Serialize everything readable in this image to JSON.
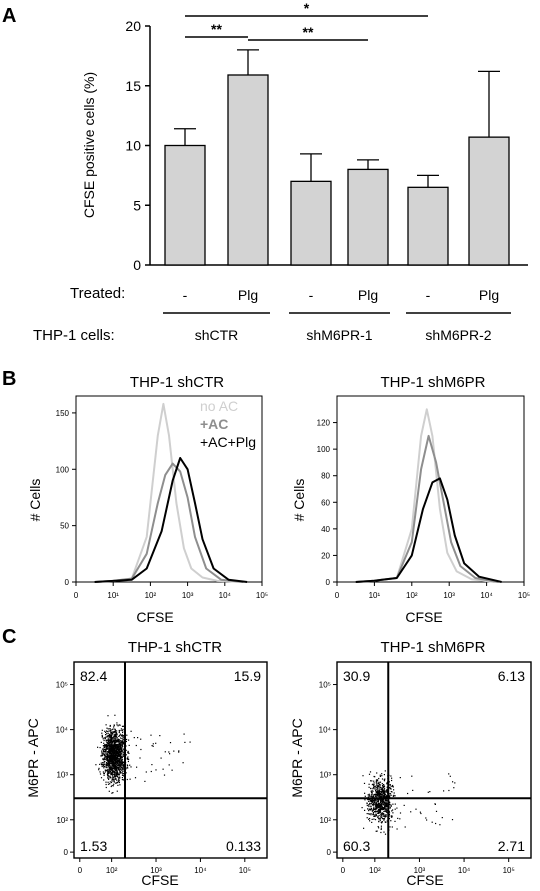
{
  "panel_labels": [
    "A",
    "B",
    "C"
  ],
  "colors": {
    "bar_fill": "#d3d3d3",
    "no_ac": "#cfcfcf",
    "ac": "#8e8e8e",
    "ac_plg": "#000000",
    "dots": "#000000"
  },
  "chart_data": [
    {
      "type": "bar",
      "panel": "A",
      "ylabel": "CFSE positive cells (%)",
      "ylim": [
        0,
        20
      ],
      "yticks": [
        0,
        5,
        10,
        15,
        20
      ],
      "categories": [
        "-",
        "Plg",
        "-",
        "Plg",
        "-",
        "Plg"
      ],
      "values": [
        10.0,
        15.9,
        7.0,
        8.0,
        6.5,
        10.7
      ],
      "errors": [
        1.4,
        2.1,
        2.3,
        0.8,
        1.0,
        5.5
      ],
      "treated_label": "Treated:",
      "cells_label": "THP-1 cells:",
      "groups": [
        "shCTR",
        "shM6PR-1",
        "shM6PR-2"
      ],
      "significance": [
        {
          "from": 0,
          "to": 1,
          "label": "**"
        },
        {
          "from": 1,
          "to": 3,
          "label": "**"
        },
        {
          "from": 0,
          "to": 4,
          "label": "*"
        }
      ]
    },
    {
      "type": "line",
      "panel": "B",
      "title": "THP-1 shCTR",
      "xlabel": "CFSE",
      "ylabel": "# Cells",
      "xscale": "log",
      "xticks": [
        "0",
        "10¹",
        "10²",
        "10³",
        "10⁴",
        "10⁵"
      ],
      "ylim": [
        0,
        165
      ],
      "yticks": [
        0,
        50,
        100,
        150
      ],
      "legend_position": "top-right",
      "series": [
        {
          "name": "no AC",
          "x": [
            0.5,
            1.0,
            1.5,
            1.9,
            2.2,
            2.35,
            2.5,
            2.7,
            2.9,
            3.1,
            3.4,
            3.8,
            4.5
          ],
          "y": [
            0,
            1,
            3,
            40,
            130,
            158,
            130,
            70,
            30,
            12,
            4,
            1,
            0
          ]
        },
        {
          "name": "+AC",
          "x": [
            0.5,
            1.0,
            1.5,
            1.9,
            2.2,
            2.4,
            2.6,
            2.8,
            3.0,
            3.2,
            3.5,
            3.9,
            4.5
          ],
          "y": [
            0,
            1,
            3,
            25,
            70,
            95,
            105,
            98,
            75,
            40,
            12,
            2,
            0
          ]
        },
        {
          "name": "+AC+Plg",
          "x": [
            0.5,
            1.0,
            1.5,
            1.9,
            2.3,
            2.6,
            2.8,
            3.0,
            3.2,
            3.4,
            3.7,
            4.1,
            4.6
          ],
          "y": [
            0,
            1,
            2,
            12,
            45,
            90,
            110,
            100,
            70,
            38,
            12,
            2,
            0
          ]
        }
      ]
    },
    {
      "type": "line",
      "panel": "B",
      "title": "THP-1 shM6PR",
      "xlabel": "CFSE",
      "ylabel": "# Cells",
      "xscale": "log",
      "xticks": [
        "0",
        "10¹",
        "10²",
        "10³",
        "10⁴",
        "10⁵"
      ],
      "ylim": [
        0,
        140
      ],
      "yticks": [
        0,
        20,
        40,
        60,
        80,
        100,
        120
      ],
      "series": [
        {
          "name": "no AC",
          "x": [
            0.5,
            1.0,
            1.6,
            2.0,
            2.25,
            2.4,
            2.55,
            2.75,
            2.95,
            3.2,
            3.6,
            4.2
          ],
          "y": [
            0,
            1,
            3,
            40,
            110,
            130,
            110,
            55,
            22,
            8,
            2,
            0
          ]
        },
        {
          "name": "+AC",
          "x": [
            0.5,
            1.0,
            1.6,
            2.0,
            2.25,
            2.45,
            2.65,
            2.85,
            3.05,
            3.3,
            3.7,
            4.3
          ],
          "y": [
            0,
            1,
            3,
            30,
            85,
            110,
            90,
            60,
            30,
            12,
            3,
            0
          ]
        },
        {
          "name": "+AC+Plg",
          "x": [
            0.5,
            1.0,
            1.6,
            2.0,
            2.3,
            2.55,
            2.75,
            2.95,
            3.15,
            3.4,
            3.8,
            4.4
          ],
          "y": [
            0,
            1,
            3,
            20,
            55,
            75,
            78,
            62,
            35,
            14,
            4,
            0
          ]
        }
      ]
    },
    {
      "type": "scatter",
      "panel": "C",
      "title": "THP-1 shCTR",
      "xlabel": "CFSE",
      "ylabel": "M6PR - APC",
      "xticks": [
        "0",
        "10²",
        "10³",
        "10⁴",
        "10⁵"
      ],
      "yticks": [
        "0",
        "10²",
        "10³",
        "10⁴",
        "10⁵"
      ],
      "gate": {
        "x": 200,
        "y": 300
      },
      "quadrants": {
        "top_left": "82.4",
        "top_right": "15.9",
        "bottom_left": "1.53",
        "bottom_right": "0.133"
      },
      "cluster": {
        "x_center": 2.05,
        "y_center": 3.45,
        "x_spread": 0.13,
        "y_spread": 0.28,
        "n": 1400,
        "seed": 7
      }
    },
    {
      "type": "scatter",
      "panel": "C",
      "title": "THP-1 shM6PR",
      "xlabel": "CFSE",
      "ylabel": "M6PR - APC",
      "xticks": [
        "0",
        "10²",
        "10³",
        "10⁴",
        "10⁵"
      ],
      "yticks": [
        "0",
        "10²",
        "10³",
        "10⁴",
        "10⁵"
      ],
      "gate": {
        "x": 200,
        "y": 300
      },
      "quadrants": {
        "top_left": "30.9",
        "top_right": "6.13",
        "bottom_left": "60.3",
        "bottom_right": "2.71"
      },
      "cluster": {
        "x_center": 2.1,
        "y_center": 2.45,
        "x_spread": 0.14,
        "y_spread": 0.25,
        "n": 700,
        "seed": 11
      }
    }
  ]
}
